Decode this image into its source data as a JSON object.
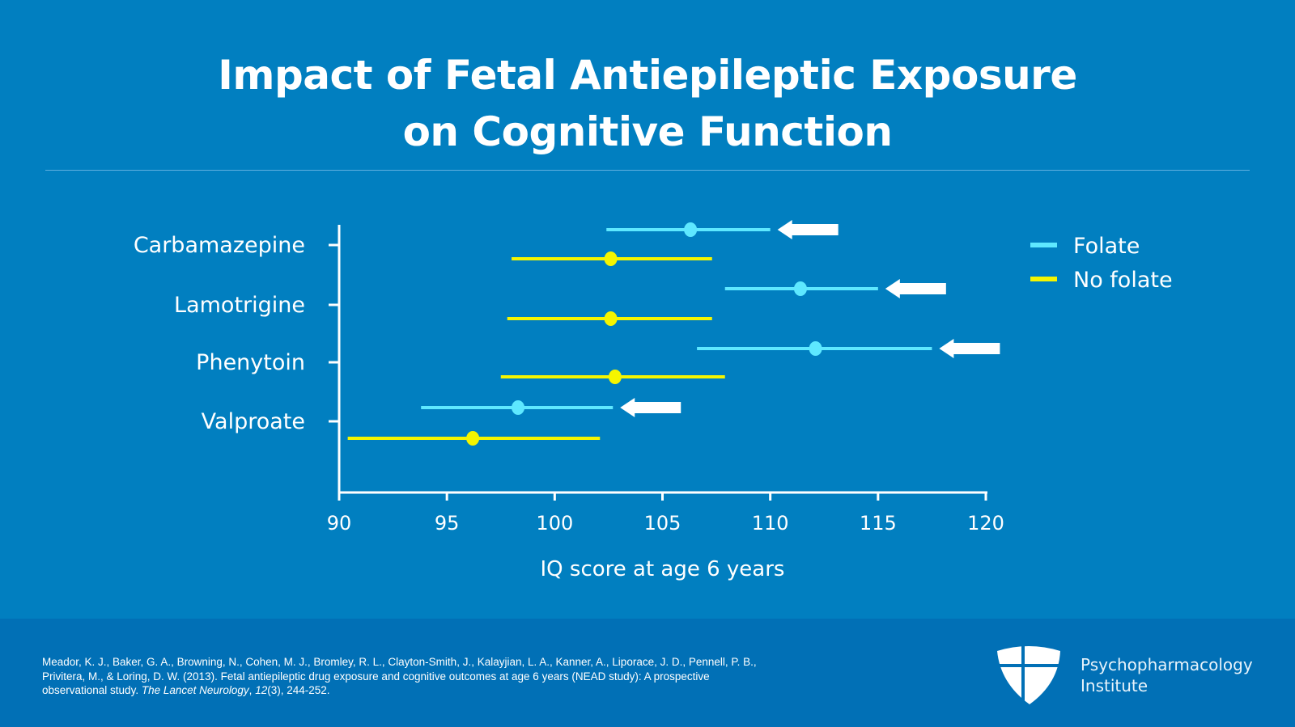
{
  "title": {
    "line1": "Impact of Fetal Antiepileptic Exposure",
    "line2": "on Cognitive Function"
  },
  "colors": {
    "background": "#017fc0",
    "footer": "#0170b6",
    "folate": "#5ee8ff",
    "no_folate": "#f5f500",
    "arrow": "#ffffff"
  },
  "chart_data": {
    "type": "forest",
    "xlabel": "IQ score at age 6 years",
    "xlim": [
      90,
      120
    ],
    "xticks": [
      90,
      95,
      100,
      105,
      110,
      115,
      120
    ],
    "categories": [
      "Carbamazepine",
      "Lamotrigine",
      "Phenytoin",
      "Valproate"
    ],
    "legend": {
      "position": "right",
      "entries": [
        "Folate",
        "No folate"
      ]
    },
    "series": [
      {
        "name": "Folate",
        "color": "#5ee8ff",
        "mean": [
          106.3,
          111.4,
          112.1,
          98.3
        ],
        "lower": [
          102.4,
          107.9,
          106.6,
          93.8
        ],
        "upper": [
          110.0,
          115.0,
          117.5,
          102.7
        ]
      },
      {
        "name": "No folate",
        "color": "#f5f500",
        "mean": [
          102.6,
          102.6,
          102.8,
          96.2
        ],
        "lower": [
          98.0,
          97.8,
          97.5,
          90.4
        ],
        "upper": [
          107.3,
          107.3,
          107.9,
          102.1
        ]
      }
    ],
    "annotations": "left-pointing-arrows-next-to-folate-intervals"
  },
  "footer": {
    "citation_plain": "Meador, K. J., Baker, G. A., Browning, N., Cohen, M. J., Bromley, R. L., Clayton-Smith, J., Kalayjian, L. A., Kanner, A., Liporace, J. D., Pennell, P. B., Privitera, M., & Loring, D. W. (2013). Fetal antiepileptic drug exposure and cognitive outcomes at age 6 years (NEAD study): A prospective observational study. ",
    "journal": "The Lancet Neurology",
    "sep": ", ",
    "volume": "12",
    "rest": "(3), 244-252.",
    "brand_line1": "Psychopharmacology",
    "brand_line2": "Institute",
    "logo_icon": "shield-cross-icon"
  }
}
